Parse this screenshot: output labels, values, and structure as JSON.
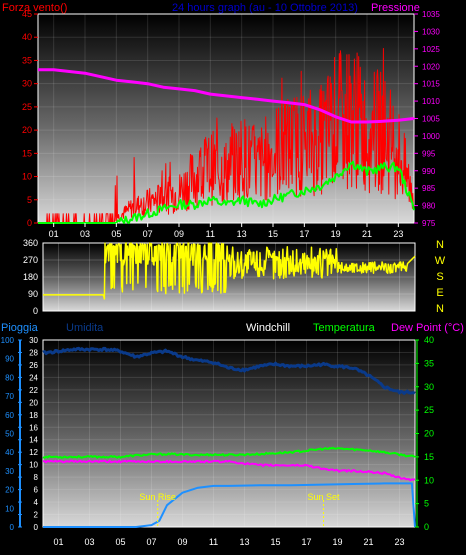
{
  "page": {
    "background": "#000000",
    "colors": {
      "wind": "#ff0000",
      "pressure": "#ff00ff",
      "title": "#0000cc",
      "direction": "#ffff00",
      "rain": "#1e90ff",
      "humidity": "#0a3a8a",
      "windchill": "#ffffff",
      "temperature": "#00ff00",
      "dewpoint": "#ff00ff",
      "axis": "#ffffff"
    }
  },
  "chart_data": [
    {
      "type": "line",
      "title": "24 hours graph (au - 10 Ottobre 2013)",
      "left_axis_label": "Forza vento()",
      "right_axis_label": "Pressione",
      "x_ticks": [
        "01",
        "03",
        "05",
        "07",
        "09",
        "11",
        "13",
        "15",
        "17",
        "19",
        "21",
        "23"
      ],
      "xlim": [
        0,
        24
      ],
      "ylim_left": [
        0,
        45
      ],
      "ylim_right": [
        975,
        1035
      ],
      "left_ticks": [
        "0",
        "5",
        "10",
        "15",
        "20",
        "25",
        "30",
        "35",
        "40",
        "45"
      ],
      "right_ticks": [
        "975",
        "980",
        "985",
        "990",
        "995",
        "1000",
        "1005",
        "1010",
        "1015",
        "1020",
        "1025",
        "1030",
        "1035"
      ],
      "series": [
        {
          "axis": "right",
          "x": [
            0,
            1,
            2,
            3,
            4,
            5,
            6,
            7,
            8,
            9,
            10,
            11,
            12,
            13,
            14,
            15,
            16,
            17,
            18,
            19,
            20,
            21,
            22,
            23,
            24
          ],
          "values": [
            1019,
            1019,
            1018.5,
            1018,
            1017,
            1016,
            1015.5,
            1015,
            1014,
            1013.5,
            1013,
            1012,
            1011.5,
            1011,
            1010.5,
            1010,
            1009.5,
            1009,
            1007.5,
            1005.5,
            1004,
            1004,
            1004.2,
            1004.5,
            1005
          ]
        },
        {
          "axis": "left",
          "x": [
            0,
            1,
            2,
            3,
            4,
            5,
            6,
            7,
            8,
            9,
            10,
            11,
            12,
            13,
            14,
            15,
            16,
            17,
            18,
            19,
            20,
            21,
            22,
            23,
            24
          ],
          "values": [
            0,
            0,
            0,
            0,
            0,
            1,
            3,
            4,
            5,
            6,
            9,
            11,
            10,
            13,
            11,
            14,
            15,
            16,
            16,
            20,
            21,
            18,
            18,
            14,
            5
          ]
        },
        {
          "axis": "left",
          "x": [
            0,
            1,
            2,
            3,
            4,
            5,
            6,
            7,
            8,
            9,
            10,
            11,
            12,
            13,
            14,
            15,
            16,
            17,
            18,
            19,
            20,
            21,
            22,
            23,
            24
          ],
          "values": [
            0,
            0,
            0,
            0,
            0,
            0,
            1,
            2,
            3,
            4,
            4,
            5,
            4,
            5,
            4,
            5,
            6,
            7,
            8,
            10,
            13,
            11,
            12,
            12,
            3
          ]
        }
      ]
    },
    {
      "type": "line",
      "x_ticks": [
        "01",
        "03",
        "05",
        "07",
        "09",
        "11",
        "13",
        "15",
        "17",
        "19",
        "21",
        "23"
      ],
      "xlim": [
        0,
        24
      ],
      "ylim": [
        0,
        360
      ],
      "y_ticks": [
        "0",
        "90",
        "180",
        "270",
        "360"
      ],
      "compass": [
        "N",
        "W",
        "S",
        "E",
        "N"
      ],
      "series": [
        {
          "x": [
            0,
            3.9,
            4,
            5,
            6,
            7,
            8,
            9,
            10,
            11,
            12,
            13,
            14,
            15,
            16,
            17,
            18,
            19,
            20,
            21,
            22,
            23,
            23.5,
            24
          ],
          "values": [
            85,
            85,
            50,
            350,
            290,
            360,
            100,
            350,
            120,
            360,
            180,
            330,
            230,
            310,
            210,
            320,
            210,
            260,
            220,
            210,
            240,
            230,
            250,
            290
          ]
        }
      ]
    },
    {
      "type": "line",
      "x_ticks": [
        "01",
        "03",
        "05",
        "07",
        "09",
        "11",
        "13",
        "15",
        "17",
        "19",
        "21",
        "23"
      ],
      "annotations": [
        "Sun Rise",
        "Sun Set"
      ],
      "annotation_x": [
        7.4,
        18.1
      ],
      "labels": {
        "rain": "Pioggia",
        "humidity": "Umidita",
        "windchill": "Windchill",
        "temperature": "Temperatura",
        "dewpoint": "Dew Point (°C)"
      },
      "rain_ticks": [
        "0",
        "2",
        "4",
        "6",
        "8",
        "10",
        "12",
        "14",
        "16",
        "18",
        "20",
        "22",
        "24",
        "26",
        "28",
        "30"
      ],
      "humidity_ticks": [
        "0",
        "10",
        "20",
        "30",
        "40",
        "50",
        "60",
        "70",
        "80",
        "90",
        "100"
      ],
      "temp_ticks": [
        "0",
        "5",
        "10",
        "15",
        "20",
        "25",
        "30",
        "35",
        "40"
      ],
      "xlim": [
        0,
        24
      ],
      "ylim_rain": [
        0,
        30
      ],
      "ylim_humidity": [
        0,
        100
      ],
      "ylim_temp": [
        0,
        40
      ],
      "series": [
        {
          "axis": "humidity",
          "x": [
            0,
            1,
            2,
            3,
            4,
            5,
            6,
            7,
            8,
            9,
            10,
            11,
            12,
            13,
            14,
            15,
            16,
            17,
            18,
            19,
            20,
            21,
            22,
            23,
            24
          ],
          "values": [
            93,
            94,
            95,
            95,
            95,
            94,
            91,
            93,
            94,
            91,
            89,
            88,
            85,
            84,
            86,
            87,
            86,
            86,
            87,
            86,
            85,
            81,
            75,
            72,
            72
          ]
        },
        {
          "axis": "temp",
          "x": [
            0,
            1,
            2,
            3,
            4,
            5,
            6,
            7,
            8,
            9,
            10,
            11,
            12,
            13,
            14,
            15,
            16,
            17,
            18,
            19,
            20,
            21,
            22,
            23,
            24
          ],
          "values": [
            15,
            15,
            15,
            15,
            15,
            15,
            15.3,
            15.5,
            15.6,
            15.5,
            15.4,
            15.5,
            15.4,
            15.5,
            15.6,
            15.8,
            16,
            16.3,
            16.7,
            16.8,
            16.6,
            16.4,
            16,
            15.5,
            15
          ]
        },
        {
          "axis": "temp",
          "x": [
            0,
            1,
            2,
            3,
            4,
            5,
            6,
            7,
            8,
            9,
            10,
            11,
            12,
            13,
            14,
            15,
            16,
            17,
            18,
            19,
            20,
            21,
            22,
            23,
            24
          ],
          "values": [
            14,
            14,
            14,
            14,
            14,
            14,
            14,
            14,
            14,
            14,
            14,
            14,
            14,
            13.6,
            13.2,
            13.2,
            13.2,
            13.2,
            12.5,
            12,
            12,
            11.8,
            11.5,
            10.5,
            10
          ]
        },
        {
          "axis": "rain",
          "x": [
            0,
            5,
            6,
            7,
            7.5,
            8,
            9,
            10,
            11,
            12,
            14,
            16,
            18,
            20,
            22,
            23,
            23.8,
            24
          ],
          "values": [
            0,
            0,
            0,
            0.3,
            1,
            3.5,
            5.5,
            6.3,
            6.6,
            6.6,
            6.7,
            6.7,
            6.8,
            6.9,
            7,
            7,
            7,
            0
          ]
        }
      ]
    }
  ]
}
